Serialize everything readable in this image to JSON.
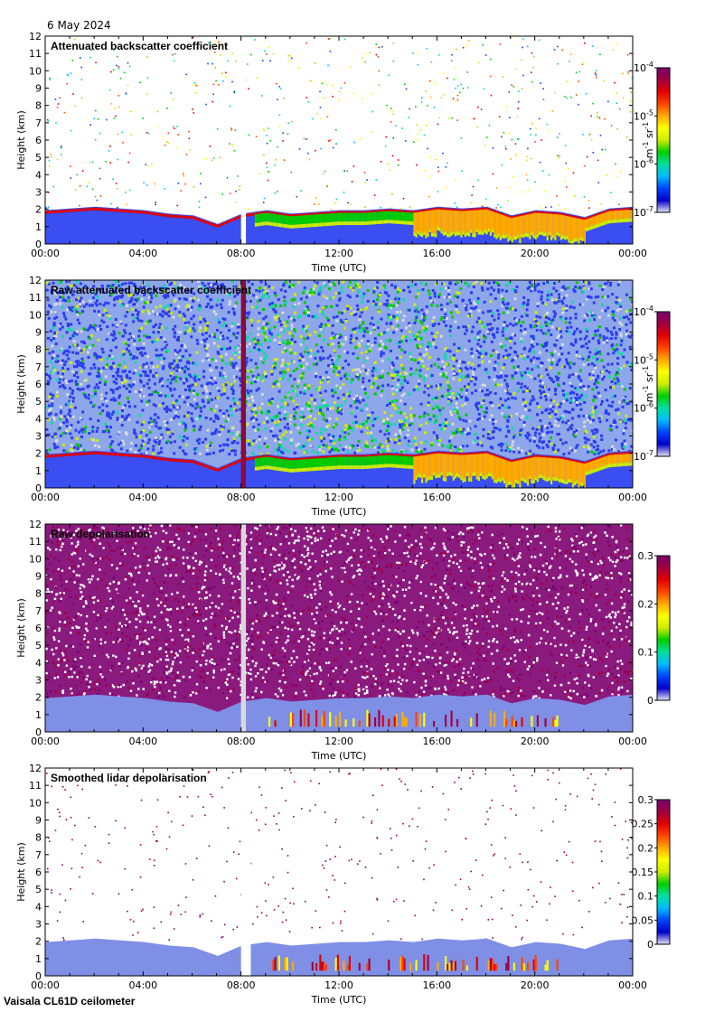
{
  "date_label": "6 May 2024",
  "footer": "Vaisala CL61D ceilometer",
  "colors": {
    "scale": [
      "#e4e4f4",
      "#0000cc",
      "#0044ff",
      "#00bbff",
      "#00e0a0",
      "#00cc00",
      "#ccee00",
      "#ffff00",
      "#ffaa00",
      "#ff4400",
      "#e40000",
      "#a00040",
      "#7a0070"
    ],
    "no_data": "#d9d9d9"
  },
  "chart_data": [
    {
      "type": "heatmap",
      "title": "Attenuated backscatter coefficient",
      "xlabel": "Time (UTC)",
      "ylabel": "Height (km)",
      "xticks": [
        "00:00",
        "04:00",
        "08:00",
        "12:00",
        "16:00",
        "20:00",
        "00:00"
      ],
      "x_range_hours": [
        0,
        24
      ],
      "ylim": [
        0,
        12
      ],
      "yticks": [
        0,
        1,
        2,
        3,
        4,
        5,
        6,
        7,
        8,
        9,
        10,
        11,
        12
      ],
      "colorbar": {
        "unit_label": "m-1 sr-1",
        "scale": "log",
        "range": [
          1e-07,
          0.0001
        ],
        "ticks": [
          {
            "value": 1e-07,
            "base": "10",
            "exp": "-7"
          },
          {
            "value": 1e-06,
            "base": "10",
            "exp": "-6"
          },
          {
            "value": 1e-05,
            "base": "10",
            "exp": "-5"
          },
          {
            "value": 0.0001,
            "base": "10",
            "exp": "-4"
          }
        ]
      },
      "cloud_base_km": [
        [
          0,
          1.8
        ],
        [
          1,
          1.9
        ],
        [
          2,
          2.0
        ],
        [
          3,
          1.9
        ],
        [
          4,
          1.8
        ],
        [
          5,
          1.6
        ],
        [
          6,
          1.5
        ],
        [
          7,
          1.0
        ],
        [
          8,
          1.6
        ],
        [
          9,
          1.8
        ],
        [
          10,
          1.6
        ],
        [
          11,
          1.7
        ],
        [
          12,
          1.8
        ],
        [
          13,
          1.8
        ],
        [
          14,
          1.9
        ],
        [
          15,
          1.8
        ],
        [
          16,
          2.0
        ],
        [
          17,
          1.9
        ],
        [
          18,
          2.0
        ],
        [
          19,
          1.5
        ],
        [
          20,
          1.8
        ],
        [
          21,
          1.7
        ],
        [
          22,
          1.4
        ],
        [
          23,
          1.9
        ],
        [
          24,
          2.0
        ]
      ],
      "gap_hours": [
        8.0,
        8.2
      ],
      "noise": "sparse"
    },
    {
      "type": "heatmap",
      "title": "Raw attenuated backscatter coefficient",
      "xlabel": "Time (UTC)",
      "ylabel": "Height (km)",
      "xticks": [
        "00:00",
        "04:00",
        "08:00",
        "12:00",
        "16:00",
        "20:00",
        "00:00"
      ],
      "x_range_hours": [
        0,
        24
      ],
      "ylim": [
        0,
        12
      ],
      "yticks": [
        0,
        1,
        2,
        3,
        4,
        5,
        6,
        7,
        8,
        9,
        10,
        11,
        12
      ],
      "colorbar": {
        "unit_label": "m-1 sr-1",
        "scale": "log",
        "range": [
          1e-07,
          0.0001
        ],
        "ticks": [
          {
            "value": 1e-07,
            "base": "10",
            "exp": "-7"
          },
          {
            "value": 1e-06,
            "base": "10",
            "exp": "-6"
          },
          {
            "value": 1e-05,
            "base": "10",
            "exp": "-5"
          },
          {
            "value": 0.0001,
            "base": "10",
            "exp": "-4"
          }
        ]
      },
      "cloud_base_km": [
        [
          0,
          1.8
        ],
        [
          1,
          1.9
        ],
        [
          2,
          2.0
        ],
        [
          3,
          1.9
        ],
        [
          4,
          1.8
        ],
        [
          5,
          1.6
        ],
        [
          6,
          1.5
        ],
        [
          7,
          1.0
        ],
        [
          8,
          1.6
        ],
        [
          9,
          1.8
        ],
        [
          10,
          1.6
        ],
        [
          11,
          1.7
        ],
        [
          12,
          1.8
        ],
        [
          13,
          1.8
        ],
        [
          14,
          1.9
        ],
        [
          15,
          1.8
        ],
        [
          16,
          2.0
        ],
        [
          17,
          1.9
        ],
        [
          18,
          2.0
        ],
        [
          19,
          1.5
        ],
        [
          20,
          1.8
        ],
        [
          21,
          1.7
        ],
        [
          22,
          1.4
        ],
        [
          23,
          1.9
        ],
        [
          24,
          2.0
        ]
      ],
      "spike_hours": [
        8.0,
        8.2
      ],
      "noise": "dense"
    },
    {
      "type": "heatmap",
      "title": "Raw depolarisation",
      "xlabel": "Time (UTC)",
      "ylabel": "Height (km)",
      "xticks": [
        "00:00",
        "04:00",
        "08:00",
        "12:00",
        "16:00",
        "20:00",
        "00:00"
      ],
      "x_range_hours": [
        0,
        24
      ],
      "ylim": [
        0,
        12
      ],
      "yticks": [
        0,
        1,
        2,
        3,
        4,
        5,
        6,
        7,
        8,
        9,
        10,
        11,
        12
      ],
      "colorbar": {
        "scale": "linear",
        "range": [
          0,
          0.3
        ],
        "ticks": [
          {
            "value": 0,
            "text": "0"
          },
          {
            "value": 0.1,
            "text": "0.1"
          },
          {
            "value": 0.2,
            "text": "0.2"
          },
          {
            "value": 0.3,
            "text": "0.3"
          }
        ]
      },
      "cloud_base_km": [
        [
          0,
          1.8
        ],
        [
          1,
          1.9
        ],
        [
          2,
          2.0
        ],
        [
          3,
          1.9
        ],
        [
          4,
          1.8
        ],
        [
          5,
          1.6
        ],
        [
          6,
          1.5
        ],
        [
          7,
          1.0
        ],
        [
          8,
          1.6
        ],
        [
          9,
          1.8
        ],
        [
          10,
          1.6
        ],
        [
          11,
          1.7
        ],
        [
          12,
          1.8
        ],
        [
          13,
          1.8
        ],
        [
          14,
          1.9
        ],
        [
          15,
          1.8
        ],
        [
          16,
          2.0
        ],
        [
          17,
          1.9
        ],
        [
          18,
          2.0
        ],
        [
          19,
          1.5
        ],
        [
          20,
          1.8
        ],
        [
          21,
          1.7
        ],
        [
          22,
          1.4
        ],
        [
          23,
          1.9
        ],
        [
          24,
          2.0
        ]
      ],
      "gap_hours": [
        8.0,
        8.2
      ],
      "noise": "depol"
    },
    {
      "type": "heatmap",
      "title": "Smoothed lidar depolarisation",
      "xlabel": "Time (UTC)",
      "ylabel": "Height (km)",
      "xticks": [
        "00:00",
        "04:00",
        "08:00",
        "12:00",
        "16:00",
        "20:00",
        "00:00"
      ],
      "x_range_hours": [
        0,
        24
      ],
      "ylim": [
        0,
        12
      ],
      "yticks": [
        0,
        1,
        2,
        3,
        4,
        5,
        6,
        7,
        8,
        9,
        10,
        11,
        12
      ],
      "colorbar": {
        "scale": "linear",
        "range": [
          0,
          0.3
        ],
        "ticks": [
          {
            "value": 0,
            "text": "0"
          },
          {
            "value": 0.05,
            "text": "0.05"
          },
          {
            "value": 0.1,
            "text": "0.1"
          },
          {
            "value": 0.15,
            "text": "0.15"
          },
          {
            "value": 0.2,
            "text": "0.2"
          },
          {
            "value": 0.25,
            "text": "0.25"
          },
          {
            "value": 0.3,
            "text": "0.3"
          }
        ]
      },
      "cloud_base_km": [
        [
          0,
          1.8
        ],
        [
          1,
          1.9
        ],
        [
          2,
          2.0
        ],
        [
          3,
          1.9
        ],
        [
          4,
          1.8
        ],
        [
          5,
          1.6
        ],
        [
          6,
          1.5
        ],
        [
          7,
          1.0
        ],
        [
          8,
          1.6
        ],
        [
          9,
          1.8
        ],
        [
          10,
          1.6
        ],
        [
          11,
          1.7
        ],
        [
          12,
          1.8
        ],
        [
          13,
          1.8
        ],
        [
          14,
          1.9
        ],
        [
          15,
          1.8
        ],
        [
          16,
          2.0
        ],
        [
          17,
          1.9
        ],
        [
          18,
          2.0
        ],
        [
          19,
          1.5
        ],
        [
          20,
          1.8
        ],
        [
          21,
          1.7
        ],
        [
          22,
          1.4
        ],
        [
          23,
          1.9
        ],
        [
          24,
          2.0
        ]
      ],
      "gap_hours": [
        8.0,
        8.4
      ],
      "noise": "sparse-depol"
    }
  ]
}
